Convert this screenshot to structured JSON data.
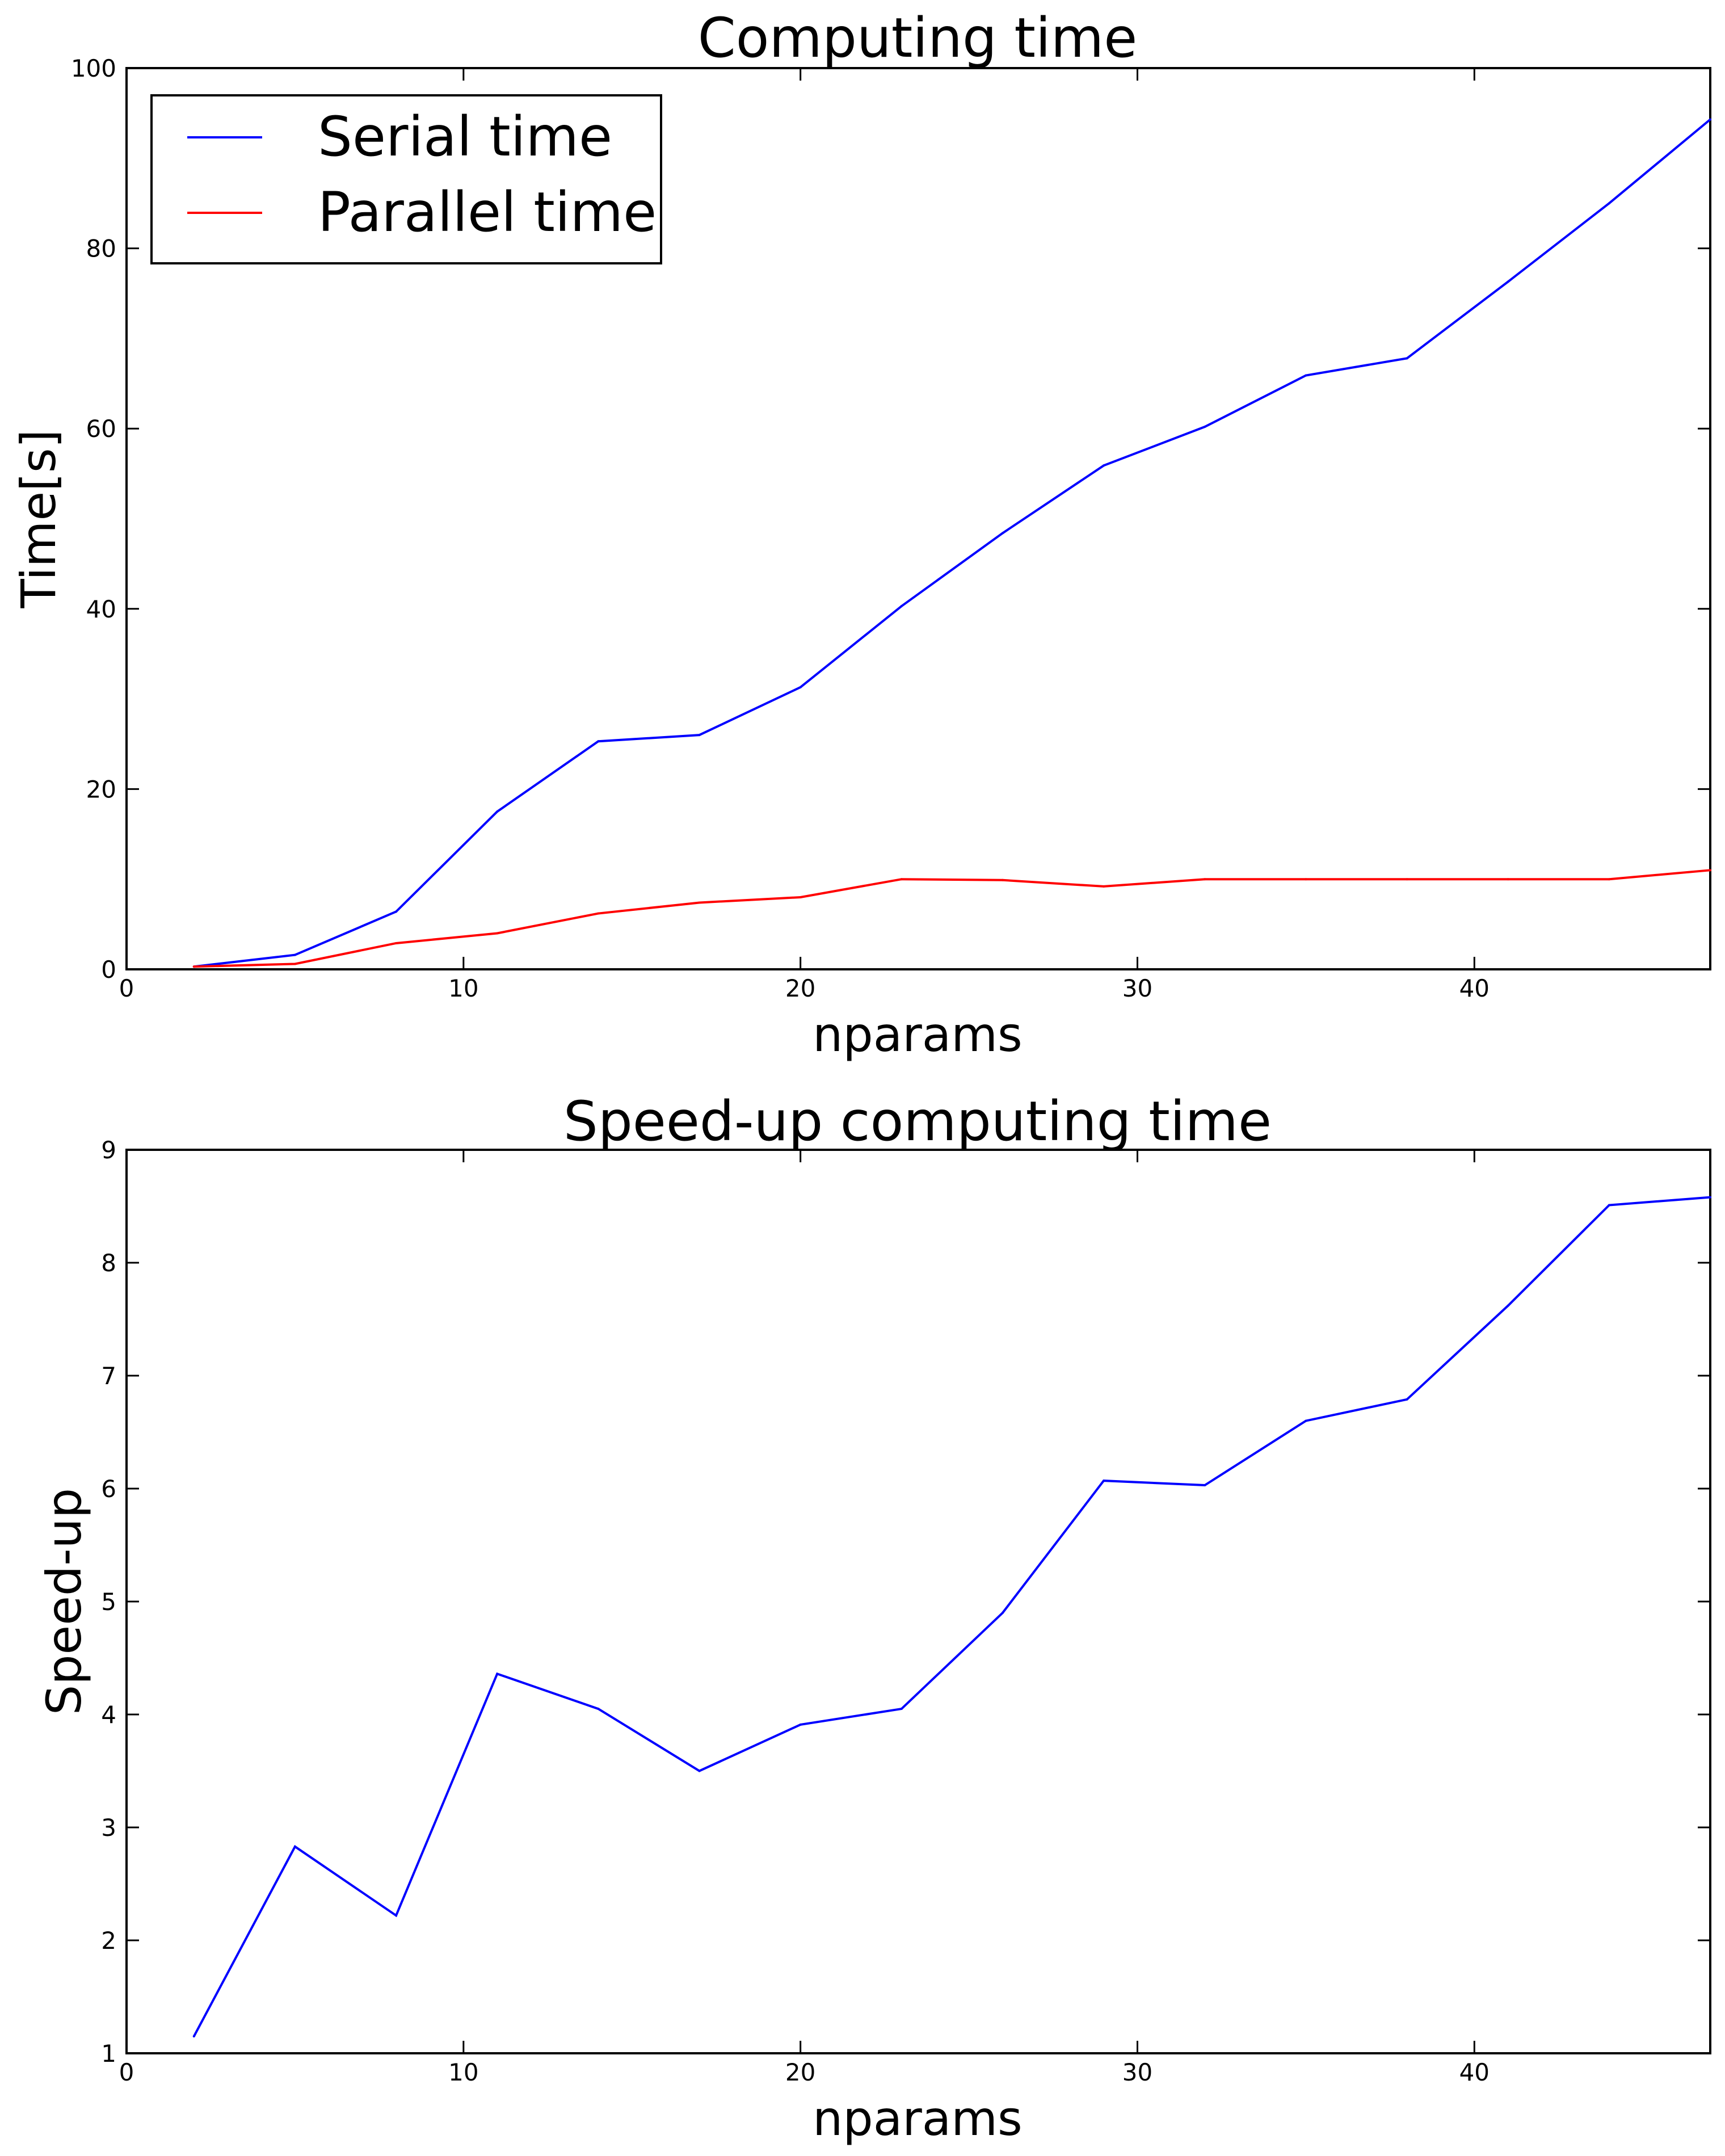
{
  "chart_data": [
    {
      "type": "line",
      "title": "Computing time",
      "xlabel": "nparams",
      "ylabel": "Time[s]",
      "xlim": [
        0,
        47
      ],
      "ylim": [
        0,
        100
      ],
      "xticks": [
        0,
        10,
        20,
        30,
        40
      ],
      "yticks": [
        0,
        20,
        40,
        60,
        80,
        100
      ],
      "grid": false,
      "legend_position": "top-left",
      "x": [
        2,
        5,
        8,
        11,
        14,
        17,
        20,
        23,
        26,
        29,
        32,
        35,
        38,
        41,
        44,
        47
      ],
      "series": [
        {
          "name": "Serial time",
          "color": "#0000ff",
          "values": [
            0.3,
            1.6,
            6.4,
            17.5,
            25.3,
            26.0,
            31.3,
            40.3,
            48.4,
            55.9,
            60.2,
            65.9,
            67.8,
            76.3,
            85.0,
            94.3
          ]
        },
        {
          "name": "Parallel time",
          "color": "#ff0000",
          "values": [
            0.3,
            0.6,
            2.9,
            4.0,
            6.2,
            7.4,
            8.0,
            10.0,
            9.9,
            9.2,
            10.0,
            10.0,
            10.0,
            10.0,
            10.0,
            11.0
          ]
        }
      ]
    },
    {
      "type": "line",
      "title": "Speed-up computing time",
      "xlabel": "nparams",
      "ylabel": "Speed-up",
      "xlim": [
        0,
        47
      ],
      "ylim": [
        1,
        9
      ],
      "xticks": [
        0,
        10,
        20,
        30,
        40
      ],
      "yticks": [
        1,
        2,
        3,
        4,
        5,
        6,
        7,
        8,
        9
      ],
      "grid": false,
      "x": [
        2,
        5,
        8,
        11,
        14,
        17,
        20,
        23,
        26,
        29,
        32,
        35,
        38,
        41,
        44,
        47
      ],
      "series": [
        {
          "color": "#0000ff",
          "values": [
            1.15,
            2.83,
            2.22,
            4.36,
            4.05,
            3.5,
            3.91,
            4.05,
            4.9,
            6.07,
            6.03,
            6.6,
            6.79,
            7.62,
            8.51,
            8.58
          ]
        }
      ]
    }
  ]
}
